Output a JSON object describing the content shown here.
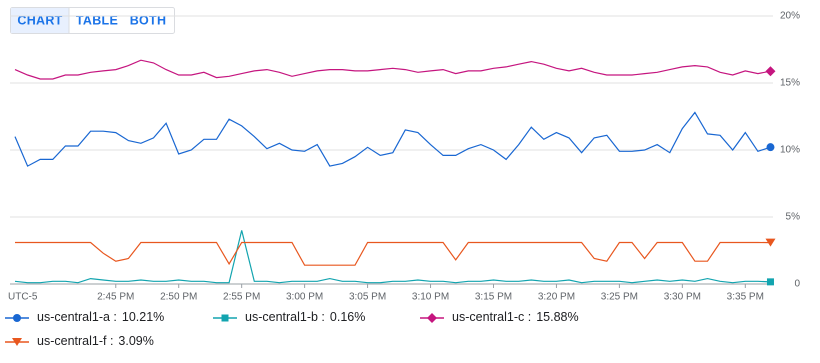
{
  "view_tabs": [
    "CHART",
    "TABLE",
    "BOTH"
  ],
  "chart_data": {
    "type": "line",
    "x_axis_label": "UTC-5",
    "x": [
      877,
      878,
      879,
      880,
      881,
      882,
      883,
      884,
      885,
      886,
      887,
      888,
      889,
      890,
      891,
      892,
      893,
      894,
      895,
      896,
      897,
      898,
      899,
      900,
      901,
      902,
      903,
      904,
      905,
      906,
      907,
      908,
      909,
      910,
      911,
      912,
      913,
      914,
      915,
      916,
      917,
      918,
      919,
      920,
      921,
      922,
      923,
      924,
      925,
      926,
      927,
      928,
      929,
      930,
      931,
      932,
      933,
      934,
      935,
      936,
      937
    ],
    "xlim": [
      876.6,
      937.2
    ],
    "xticks": [
      {
        "value": 885,
        "label": "2:45 PM"
      },
      {
        "value": 890,
        "label": "2:50 PM"
      },
      {
        "value": 895,
        "label": "2:55 PM"
      },
      {
        "value": 900,
        "label": "3:00 PM"
      },
      {
        "value": 905,
        "label": "3:05 PM"
      },
      {
        "value": 910,
        "label": "3:10 PM"
      },
      {
        "value": 915,
        "label": "3:15 PM"
      },
      {
        "value": 920,
        "label": "3:20 PM"
      },
      {
        "value": 925,
        "label": "3:25 PM"
      },
      {
        "value": 930,
        "label": "3:30 PM"
      },
      {
        "value": 935,
        "label": "3:35 PM"
      }
    ],
    "ylim": [
      0,
      20
    ],
    "yticks": [
      0,
      {
        "value": 5,
        "label": "5%"
      },
      {
        "value": 10,
        "label": "10%"
      },
      {
        "value": 15,
        "label": "15%"
      },
      {
        "value": 20,
        "label": "20%"
      }
    ],
    "grid": true,
    "series": [
      {
        "name": "us-central1-a :",
        "legend_label": "10.21%",
        "color": "#1967d2",
        "marker": "circle",
        "values": [
          11.0,
          8.8,
          9.3,
          9.3,
          10.3,
          10.3,
          11.4,
          11.4,
          11.3,
          10.7,
          10.5,
          10.9,
          12.0,
          9.7,
          10.0,
          10.8,
          10.8,
          12.3,
          11.8,
          11.0,
          10.1,
          10.5,
          10.0,
          9.9,
          10.4,
          8.8,
          9.0,
          9.5,
          10.2,
          9.6,
          9.8,
          11.5,
          11.3,
          10.4,
          9.6,
          9.6,
          10.1,
          10.4,
          10.0,
          9.3,
          10.4,
          11.7,
          10.8,
          11.3,
          10.9,
          9.8,
          10.9,
          11.1,
          9.9,
          9.9,
          10.0,
          10.4,
          9.8,
          11.6,
          12.8,
          11.2,
          11.1,
          10.0,
          11.3,
          9.9,
          10.21
        ]
      },
      {
        "name": "us-central1-b :",
        "legend_label": "0.16%",
        "color": "#12a4af",
        "marker": "square",
        "values": [
          0.2,
          0.1,
          0.1,
          0.2,
          0.2,
          0.1,
          0.4,
          0.3,
          0.2,
          0.2,
          0.3,
          0.2,
          0.2,
          0.3,
          0.2,
          0.2,
          0.1,
          0.1,
          4.0,
          0.2,
          0.2,
          0.1,
          0.2,
          0.2,
          0.2,
          0.4,
          0.2,
          0.2,
          0.1,
          0.1,
          0.2,
          0.2,
          0.3,
          0.2,
          0.2,
          0.1,
          0.2,
          0.2,
          0.3,
          0.2,
          0.2,
          0.3,
          0.2,
          0.2,
          0.3,
          0.1,
          0.2,
          0.2,
          0.2,
          0.1,
          0.2,
          0.3,
          0.2,
          0.3,
          0.2,
          0.4,
          0.2,
          0.1,
          0.2,
          0.2,
          0.16
        ]
      },
      {
        "name": "us-central1-c :",
        "legend_label": "15.88%",
        "color": "#c5157f",
        "marker": "diamond",
        "values": [
          16.0,
          15.6,
          15.3,
          15.3,
          15.6,
          15.6,
          15.8,
          15.9,
          16.0,
          16.3,
          16.7,
          16.5,
          16.0,
          15.6,
          15.6,
          15.8,
          15.4,
          15.5,
          15.7,
          15.9,
          16.0,
          15.8,
          15.5,
          15.7,
          15.9,
          16.0,
          16.0,
          15.9,
          15.9,
          16.0,
          16.1,
          16.0,
          15.8,
          15.9,
          16.0,
          15.7,
          15.9,
          15.9,
          16.1,
          16.2,
          16.4,
          16.6,
          16.4,
          16.1,
          15.9,
          16.1,
          15.8,
          15.6,
          15.6,
          15.6,
          15.7,
          15.8,
          16.0,
          16.2,
          16.3,
          16.2,
          15.8,
          15.6,
          15.9,
          15.7,
          15.88
        ]
      },
      {
        "name": "us-central1-f :",
        "legend_label": "3.09%",
        "color": "#e8571f",
        "marker": "triangle",
        "values": [
          3.1,
          3.1,
          3.1,
          3.1,
          3.1,
          3.1,
          3.1,
          2.3,
          1.7,
          1.9,
          3.1,
          3.1,
          3.1,
          3.1,
          3.1,
          3.1,
          3.1,
          1.5,
          3.1,
          3.1,
          3.1,
          3.1,
          3.1,
          1.4,
          1.4,
          1.4,
          1.4,
          1.4,
          3.1,
          3.1,
          3.1,
          3.1,
          3.1,
          3.1,
          3.1,
          1.8,
          3.1,
          3.1,
          3.1,
          3.1,
          3.1,
          3.1,
          3.1,
          3.1,
          3.1,
          3.1,
          1.9,
          1.7,
          3.1,
          3.1,
          1.9,
          3.1,
          3.1,
          3.1,
          1.7,
          1.7,
          3.1,
          3.1,
          3.1,
          3.1,
          3.09
        ]
      }
    ]
  }
}
